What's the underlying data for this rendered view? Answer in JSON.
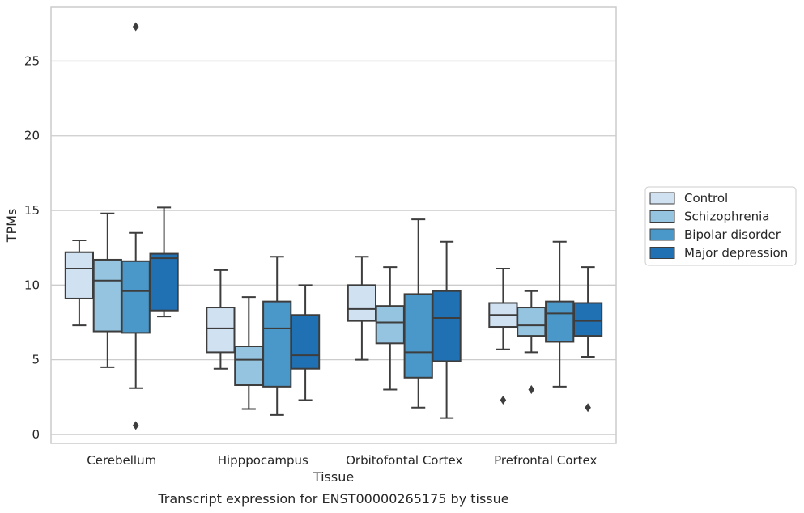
{
  "chart_data": {
    "type": "box",
    "title": "",
    "caption": "Transcript expression for ENST00000265175 by tissue",
    "xlabel": "Tissue",
    "ylabel": "TPMs",
    "ylim": [
      -0.6,
      28.6
    ],
    "yticks": [
      0,
      5,
      10,
      15,
      20,
      25
    ],
    "grid": "horizontal",
    "legend_position": "right",
    "categories": [
      "Cerebellum",
      "Hipppocampus",
      "Orbitofontal Cortex",
      "Prefrontal Cortex"
    ],
    "series": [
      {
        "name": "Control",
        "color": "#d0e1f2",
        "boxes": [
          {
            "whisker_low": 7.3,
            "q1": 9.1,
            "median": 11.1,
            "q3": 12.2,
            "whisker_high": 13.0,
            "outliers": []
          },
          {
            "whisker_low": 4.4,
            "q1": 5.5,
            "median": 7.1,
            "q3": 8.5,
            "whisker_high": 11.0,
            "outliers": []
          },
          {
            "whisker_low": 5.0,
            "q1": 7.6,
            "median": 8.4,
            "q3": 10.0,
            "whisker_high": 11.9,
            "outliers": []
          },
          {
            "whisker_low": 5.7,
            "q1": 7.2,
            "median": 8.0,
            "q3": 8.8,
            "whisker_high": 11.1,
            "outliers": [
              2.3
            ]
          }
        ]
      },
      {
        "name": "Schizophrenia",
        "color": "#94c4df",
        "boxes": [
          {
            "whisker_low": 4.5,
            "q1": 6.9,
            "median": 10.3,
            "q3": 11.7,
            "whisker_high": 14.8,
            "outliers": []
          },
          {
            "whisker_low": 1.7,
            "q1": 3.3,
            "median": 5.0,
            "q3": 5.9,
            "whisker_high": 9.2,
            "outliers": []
          },
          {
            "whisker_low": 3.0,
            "q1": 6.1,
            "median": 7.5,
            "q3": 8.6,
            "whisker_high": 11.2,
            "outliers": []
          },
          {
            "whisker_low": 5.5,
            "q1": 6.6,
            "median": 7.3,
            "q3": 8.5,
            "whisker_high": 9.6,
            "outliers": [
              3.0
            ]
          }
        ]
      },
      {
        "name": "Bipolar disorder",
        "color": "#4a98c9",
        "boxes": [
          {
            "whisker_low": 3.1,
            "q1": 6.8,
            "median": 9.6,
            "q3": 11.6,
            "whisker_high": 13.5,
            "outliers": [
              27.3,
              0.6
            ]
          },
          {
            "whisker_low": 1.3,
            "q1": 3.2,
            "median": 7.1,
            "q3": 8.9,
            "whisker_high": 11.9,
            "outliers": []
          },
          {
            "whisker_low": 1.8,
            "q1": 3.8,
            "median": 5.5,
            "q3": 9.4,
            "whisker_high": 14.4,
            "outliers": []
          },
          {
            "whisker_low": 3.2,
            "q1": 6.2,
            "median": 8.1,
            "q3": 8.9,
            "whisker_high": 12.9,
            "outliers": []
          }
        ]
      },
      {
        "name": "Major depression",
        "color": "#2070b4",
        "boxes": [
          {
            "whisker_low": 7.9,
            "q1": 8.3,
            "median": 11.8,
            "q3": 12.1,
            "whisker_high": 15.2,
            "outliers": []
          },
          {
            "whisker_low": 2.3,
            "q1": 4.4,
            "median": 5.3,
            "q3": 8.0,
            "whisker_high": 10.0,
            "outliers": []
          },
          {
            "whisker_low": 1.1,
            "q1": 4.9,
            "median": 7.8,
            "q3": 9.6,
            "whisker_high": 12.9,
            "outliers": []
          },
          {
            "whisker_low": 5.2,
            "q1": 6.6,
            "median": 7.6,
            "q3": 8.8,
            "whisker_high": 11.2,
            "outliers": [
              1.8
            ]
          }
        ]
      }
    ]
  }
}
